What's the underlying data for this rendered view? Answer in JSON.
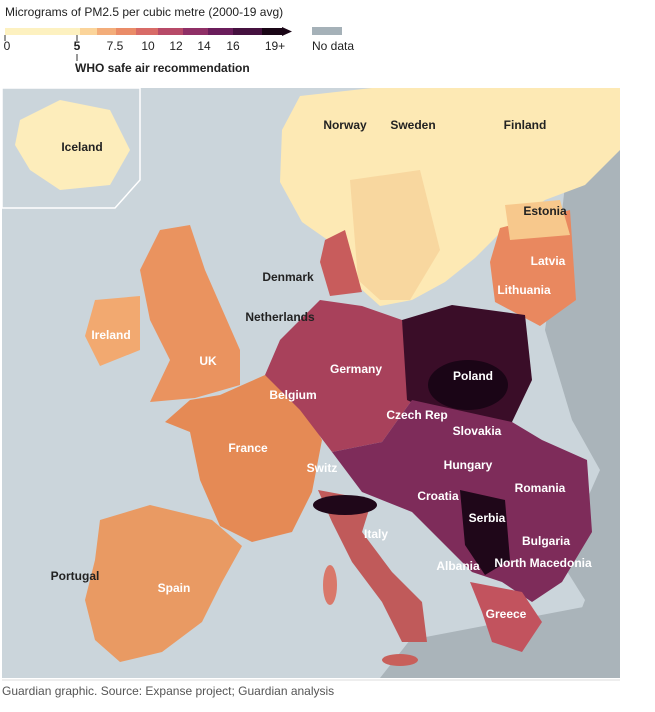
{
  "legend": {
    "title": "Micrograms of PM2.5 per cubic metre (2000-19 avg)",
    "ticks": [
      "0",
      "5",
      "7.5",
      "10",
      "12",
      "14",
      "16",
      "19+"
    ],
    "no_data": "No data",
    "who_note": "WHO safe air recommendation"
  },
  "map": {
    "labels": [
      "Iceland",
      "Norway",
      "Sweden",
      "Finland",
      "Estonia",
      "Latvia",
      "Lithuania",
      "Denmark",
      "Netherlands",
      "Ireland",
      "UK",
      "Germany",
      "Poland",
      "Belgium",
      "Czech Rep",
      "Slovakia",
      "France",
      "Hungary",
      "Switz",
      "Romania",
      "Croatia",
      "Serbia",
      "Italy",
      "Bulgaria",
      "Albania",
      "North Macedonia",
      "Portugal",
      "Spain",
      "Greece"
    ]
  },
  "footer": {
    "source": "Guardian graphic. Source: Expanse project; Guardian analysis"
  }
}
